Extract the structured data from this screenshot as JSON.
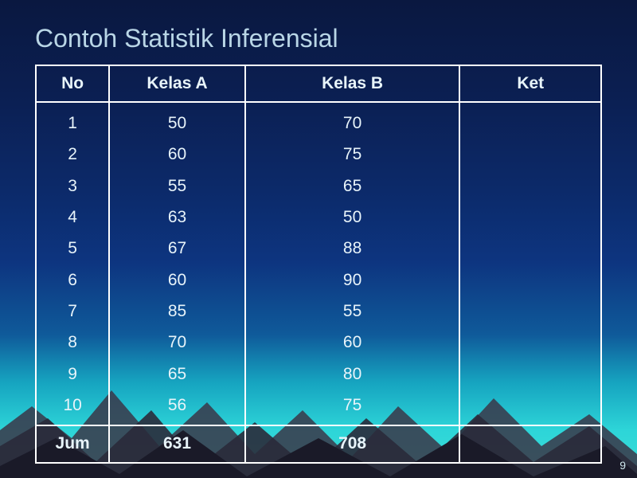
{
  "title": "Contoh Statistik Inferensial",
  "slide_number": "9",
  "table": {
    "columns": [
      "No",
      "Kelas A",
      "Kelas B",
      "Ket"
    ],
    "rows": [
      [
        "1",
        "50",
        "70",
        ""
      ],
      [
        "2",
        "60",
        "75",
        ""
      ],
      [
        "3",
        "55",
        "65",
        ""
      ],
      [
        "4",
        "63",
        "50",
        ""
      ],
      [
        "5",
        "67",
        "88",
        ""
      ],
      [
        "6",
        "60",
        "90",
        ""
      ],
      [
        "7",
        "85",
        "55",
        ""
      ],
      [
        "8",
        "70",
        "60",
        ""
      ],
      [
        "9",
        "65",
        "80",
        ""
      ],
      [
        "10",
        "56",
        "75",
        ""
      ]
    ],
    "footer": [
      "Jum",
      "631",
      "708",
      ""
    ]
  },
  "style": {
    "title_color": "#b9d6e6",
    "text_color": "#e8f4fa",
    "border_color": "#ffffff",
    "mountain_dark": "#1a1a28",
    "mountain_mid": "#2a2a3a",
    "mountain_light": "#3a3648"
  }
}
